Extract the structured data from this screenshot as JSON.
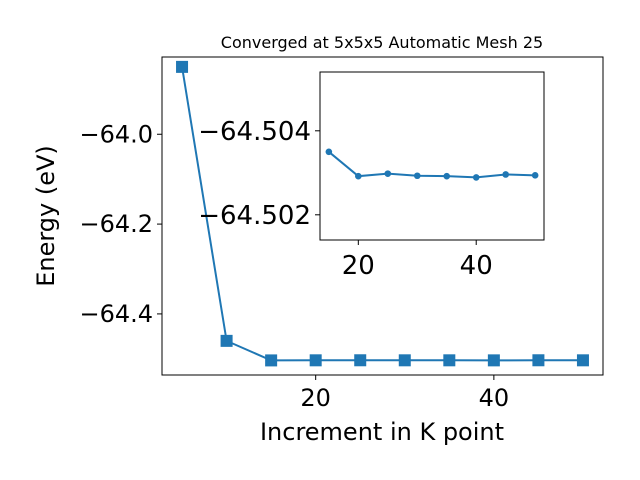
{
  "chart_data": [
    {
      "type": "line",
      "title": "Converged at 5x5x5 Automatic Mesh 25",
      "xlabel": "Increment in K point",
      "ylabel": "Energy (eV)",
      "marker": "square",
      "color": "#1f77b4",
      "x": [
        5,
        10,
        15,
        20,
        25,
        30,
        35,
        40,
        45,
        50
      ],
      "series": [
        {
          "values": [
            -63.85,
            -64.46,
            -64.5035,
            -64.5033,
            -64.5032,
            -64.5033,
            -64.5033,
            -64.5034,
            -64.5032,
            -64.5033
          ]
        }
      ],
      "xlim": [
        2.75,
        52.25
      ],
      "ylim": [
        -64.536,
        -63.828
      ],
      "xticks": [
        20,
        40
      ],
      "xtick_labels": [
        "20",
        "40"
      ],
      "yticks": [
        -64.0,
        -64.2,
        -64.4
      ],
      "ytick_labels": [
        "−64.0",
        "−64.2",
        "−64.4"
      ]
    },
    {
      "type": "line",
      "inset": true,
      "marker": "circle",
      "color": "#1f77b4",
      "x": [
        15,
        20,
        25,
        30,
        35,
        40,
        45,
        50
      ],
      "series": [
        {
          "values": [
            -64.5035,
            -64.50292,
            -64.50298,
            -64.50293,
            -64.50292,
            -64.50289,
            -64.50296,
            -64.50294
          ]
        }
      ],
      "xlim": [
        13.5,
        51.5
      ],
      "ylim": [
        -64.5014,
        -64.5054
      ],
      "xticks": [
        20,
        40
      ],
      "xtick_labels": [
        "20",
        "40"
      ],
      "yticks": [
        -64.504,
        -64.502
      ],
      "ytick_labels": [
        "−64.504",
        "−64.502"
      ]
    }
  ]
}
